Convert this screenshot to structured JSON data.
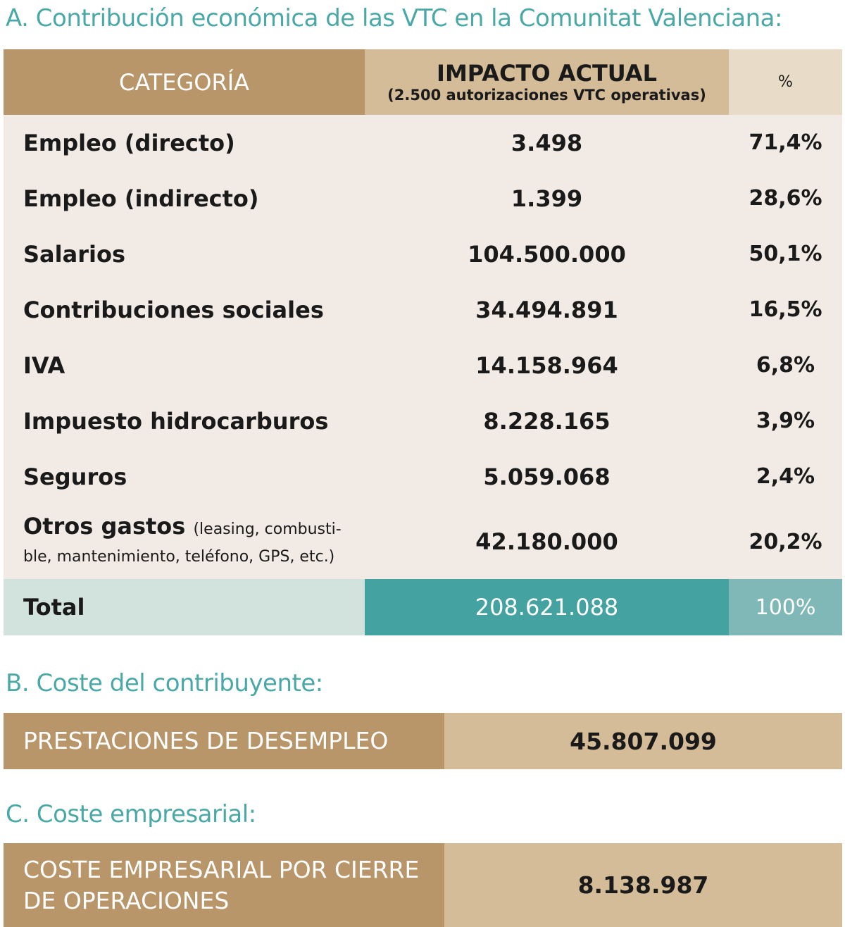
{
  "section_a": {
    "title": "A. Contribución económica de las VTC en la Comunitat Valenciana:",
    "headers": {
      "category": "CATEGORÍA",
      "impact": "IMPACTO ACTUAL",
      "impact_sub": "(2.500 autorizaciones VTC operativas)",
      "percent": "%"
    },
    "rows": [
      {
        "category": "Empleo (directo)",
        "value": "3.498",
        "percent": "71,4%"
      },
      {
        "category": "Empleo (indirecto)",
        "value": "1.399",
        "percent": "28,6%"
      },
      {
        "category": "Salarios",
        "value": "104.500.000",
        "percent": "50,1%"
      },
      {
        "category": "Contribuciones sociales",
        "value": "34.494.891",
        "percent": "16,5%"
      },
      {
        "category": "IVA",
        "value": "14.158.964",
        "percent": "6,8%"
      },
      {
        "category": "Impuesto hidrocarburos",
        "value": "8.228.165",
        "percent": "3,9%"
      },
      {
        "category": "Seguros",
        "value": "5.059.068",
        "percent": "2,4%"
      },
      {
        "category": "Otros gastos",
        "category_note": "(leasing, combusti-ble, mantenimiento, teléfono, GPS, etc.)",
        "value": "42.180.000",
        "percent": "20,2%"
      }
    ],
    "total": {
      "label": "Total",
      "value": "208.621.088",
      "percent": "100%"
    }
  },
  "section_b": {
    "title": "B. Coste del contribuyente:",
    "label": "PRESTACIONES DE DESEMPLEO",
    "value": "45.807.099"
  },
  "section_c": {
    "title": "C. Coste empresarial:",
    "label": "COSTE EMPRESARIAL POR CIERRE DE OPERACIONES",
    "value": "8.138.987"
  },
  "colors": {
    "title": "#4aa9a6",
    "dark_tan": "#b8966a",
    "light_tan": "#d4bc98",
    "row_bg": "#f2ebe5",
    "teal": "#44a2a0",
    "light_teal": "#7fb8b6"
  }
}
